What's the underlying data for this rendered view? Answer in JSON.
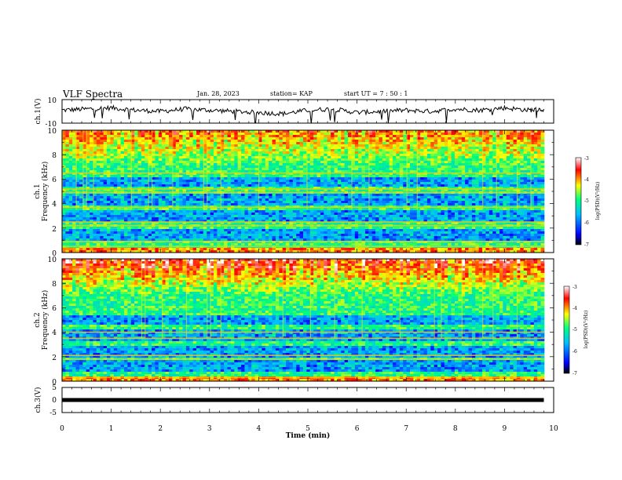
{
  "header": {
    "title": "VLF Spectra",
    "date": "Jan. 28, 2023",
    "station": "station= KAP",
    "start": "start  UT =   7 : 50 : 1"
  },
  "colors": {
    "trace": "#000000",
    "frame": "#000000",
    "colormap": [
      "#000000",
      "#0000ff",
      "#00bfff",
      "#00ff7f",
      "#ffff00",
      "#ff0000",
      "#ffffff"
    ]
  },
  "chart_data": [
    {
      "type": "line",
      "ylabel": "ch.1(V)",
      "ylim": [
        -10,
        10
      ],
      "yticks": [
        "10",
        "-10"
      ],
      "xlim": [
        0,
        10
      ],
      "x": [
        0,
        0.5,
        1,
        1.5,
        2,
        2.5,
        3,
        3.5,
        4,
        4.5,
        5,
        5.5,
        6,
        6.5,
        7,
        7.5,
        8,
        8.5,
        9,
        9.5,
        9.8
      ],
      "y": [
        1,
        2,
        3,
        1,
        0,
        2,
        1,
        0,
        -1,
        -2,
        1,
        2,
        -1,
        0,
        1,
        0,
        2,
        1,
        3,
        1,
        2
      ]
    },
    {
      "type": "heatmap",
      "ylabel_line1": "ch.1",
      "ylabel_line2": "Frequency (kHz)",
      "yticks": [
        "10",
        "8",
        "6",
        "4",
        "2",
        "0"
      ],
      "ylim": [
        0,
        10
      ],
      "xlim": [
        0,
        10
      ],
      "colorbar": {
        "label": "log(PSD)(V²/Hz)",
        "ticks": [
          "-3",
          "-4",
          "-5",
          "-6",
          "-7"
        ],
        "range": [
          -7,
          -3
        ]
      }
    },
    {
      "type": "heatmap",
      "ylabel_line1": "ch.2",
      "ylabel_line2": "Frequency (kHz)",
      "yticks": [
        "10",
        "8",
        "6",
        "4",
        "2",
        "0"
      ],
      "ylim": [
        0,
        10
      ],
      "xlim": [
        0,
        10
      ],
      "colorbar": {
        "label": "log(PSD)(V²/Hz)",
        "ticks": [
          "-3",
          "-4",
          "-5",
          "-6",
          "-7"
        ],
        "range": [
          -7,
          -3
        ]
      }
    },
    {
      "type": "line",
      "ylabel": "ch.3(V)",
      "ylim": [
        -5,
        5
      ],
      "yticks": [
        "5",
        "0",
        "-5"
      ],
      "xlim": [
        0,
        10
      ],
      "x": [
        0,
        9.8
      ],
      "y": [
        0,
        0
      ],
      "xlabel": "Time (min)",
      "xticks": [
        "0",
        "1",
        "2",
        "3",
        "4",
        "5",
        "6",
        "7",
        "8",
        "9",
        "10"
      ]
    }
  ]
}
